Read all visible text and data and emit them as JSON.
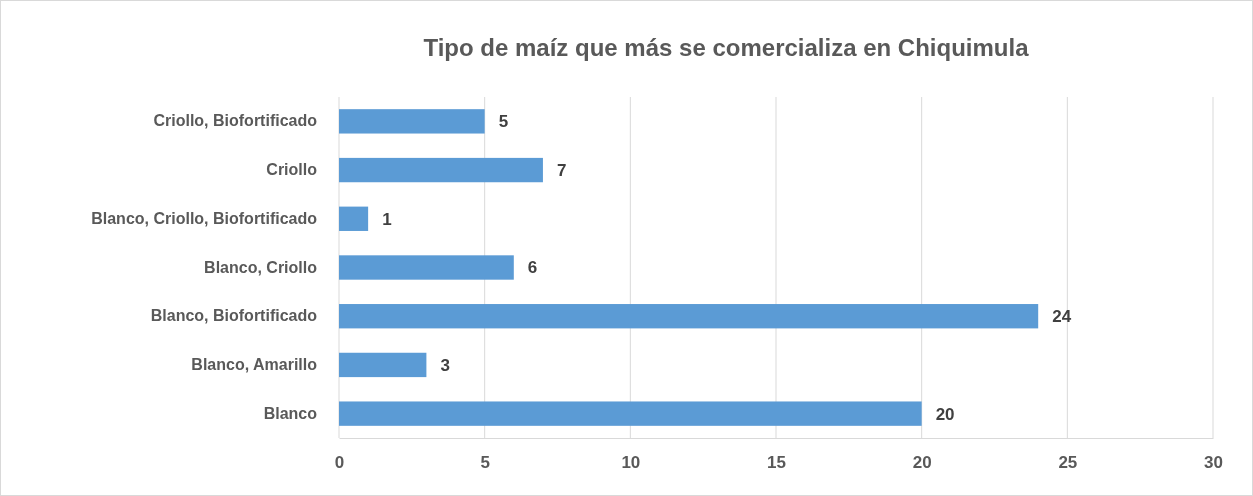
{
  "chart_data": {
    "type": "bar",
    "orientation": "horizontal",
    "title": "Tipo de maíz que más se comercializa en Chiquimula",
    "categories": [
      "Criollo, Biofortificado",
      "Criollo",
      "Blanco, Criollo, Biofortificado",
      "Blanco, Criollo",
      "Blanco, Biofortificado",
      "Blanco, Amarillo",
      "Blanco"
    ],
    "values": [
      5,
      7,
      1,
      6,
      24,
      3,
      20
    ],
    "color": "#5b9bd5",
    "data_labels": true,
    "xlim": [
      0,
      30
    ],
    "xticks": [
      0,
      5,
      10,
      15,
      20,
      25,
      30
    ],
    "grid": "x"
  }
}
